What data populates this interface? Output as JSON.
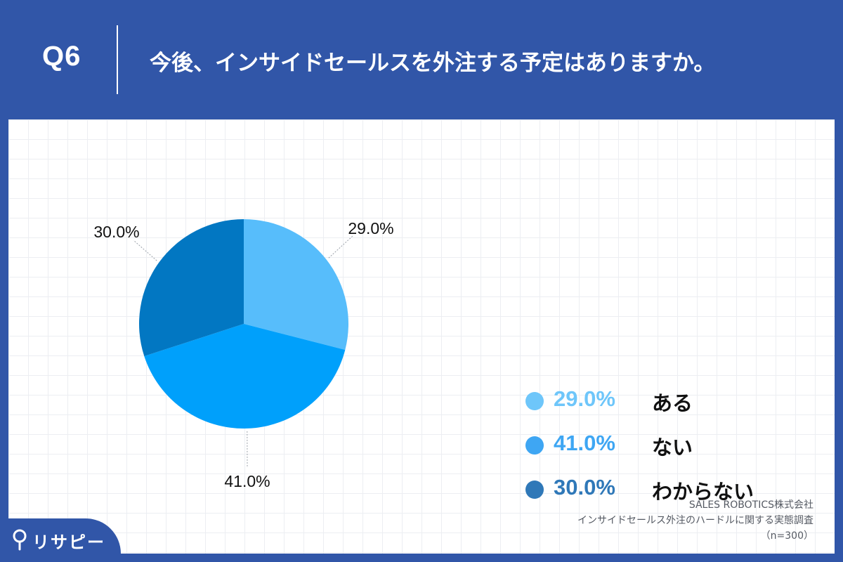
{
  "header": {
    "question_number": "Q6",
    "question_text": "今後、インサイドセールスを外注する予定はありますか。"
  },
  "chart_data": {
    "type": "pie",
    "title": "",
    "categories": [
      "ある",
      "ない",
      "わからない"
    ],
    "values": [
      29.0,
      41.0,
      30.0
    ],
    "value_labels": [
      "29.0%",
      "41.0%",
      "30.0%"
    ],
    "colors": [
      "#57bdfb",
      "#00a0fb",
      "#0277c2"
    ],
    "legend_colors": [
      "#6ec6fa",
      "#3ea6f3",
      "#2f78b8"
    ],
    "start": "12 o'clock",
    "direction": "clockwise",
    "legend_position": "right"
  },
  "footer": {
    "source_line1": "SALES ROBOTICS株式会社",
    "source_line2": "インサイドセールス外注のハードルに関する実態調査",
    "source_line3": "（n=300）",
    "brand_name": "リサピー",
    "brand_icon": "pin-icon"
  }
}
